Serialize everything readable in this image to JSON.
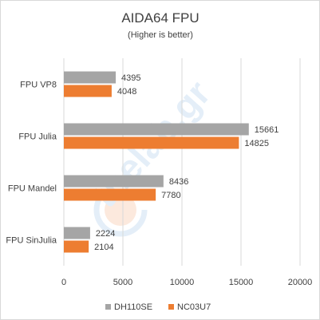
{
  "chart_data": {
    "type": "bar",
    "orientation": "horizontal",
    "title": "AIDA64 FPU",
    "subtitle": "(Higher is better)",
    "categories": [
      "FPU VP8",
      "FPU Julia",
      "FPU Mandel",
      "FPU SinJulia"
    ],
    "series": [
      {
        "name": "DH110SE",
        "color": "#a5a5a5",
        "values": [
          4395,
          15661,
          8436,
          2224
        ]
      },
      {
        "name": "NC03U7",
        "color": "#ed7d31",
        "values": [
          4048,
          14825,
          7780,
          2104
        ]
      }
    ],
    "xlim": [
      0,
      20000
    ],
    "xticks": [
      0,
      5000,
      10000,
      15000,
      20000
    ],
    "grid": true,
    "legend_position": "bottom"
  },
  "watermark": {
    "text": "thelab.gr"
  }
}
